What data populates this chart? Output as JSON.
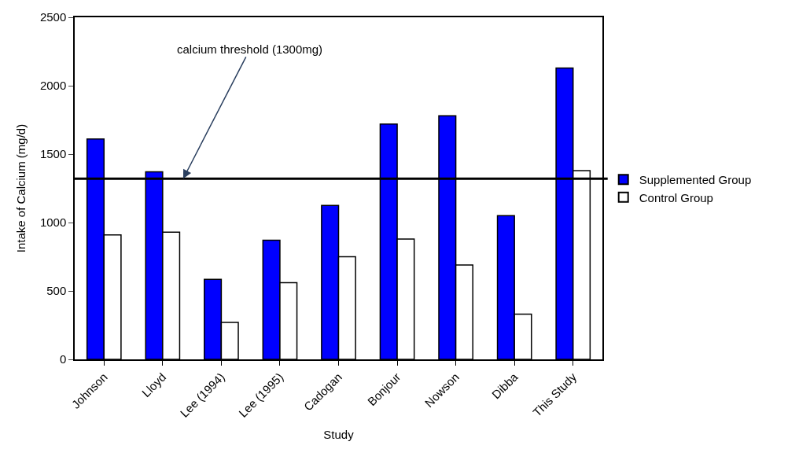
{
  "chart_data": {
    "type": "bar",
    "xlabel": "Study",
    "ylabel": "Intake of Calcium (mg/d)",
    "categories": [
      "Johnson",
      "Lloyd",
      "Lee (1994)",
      "Lee (1995)",
      "Cadogan",
      "Bonjour",
      "Nowson",
      "Dibba",
      "This Study"
    ],
    "series": [
      {
        "name": "Supplemented Group",
        "color": "#0000ff",
        "values": [
          1610,
          1370,
          585,
          870,
          1125,
          1720,
          1780,
          1050,
          2130
        ]
      },
      {
        "name": "Control Group",
        "color": "#ffffff",
        "values": [
          910,
          930,
          270,
          560,
          750,
          880,
          690,
          330,
          1380
        ]
      }
    ],
    "ylim": [
      0,
      2500
    ],
    "yticks": [
      0,
      500,
      1000,
      1500,
      2000,
      2500
    ],
    "ref_lines": [
      {
        "axis": "y",
        "value": 1320,
        "label": "calcium threshold (1300mg)",
        "color": "#000000"
      }
    ],
    "grid": false,
    "legend": "right"
  }
}
